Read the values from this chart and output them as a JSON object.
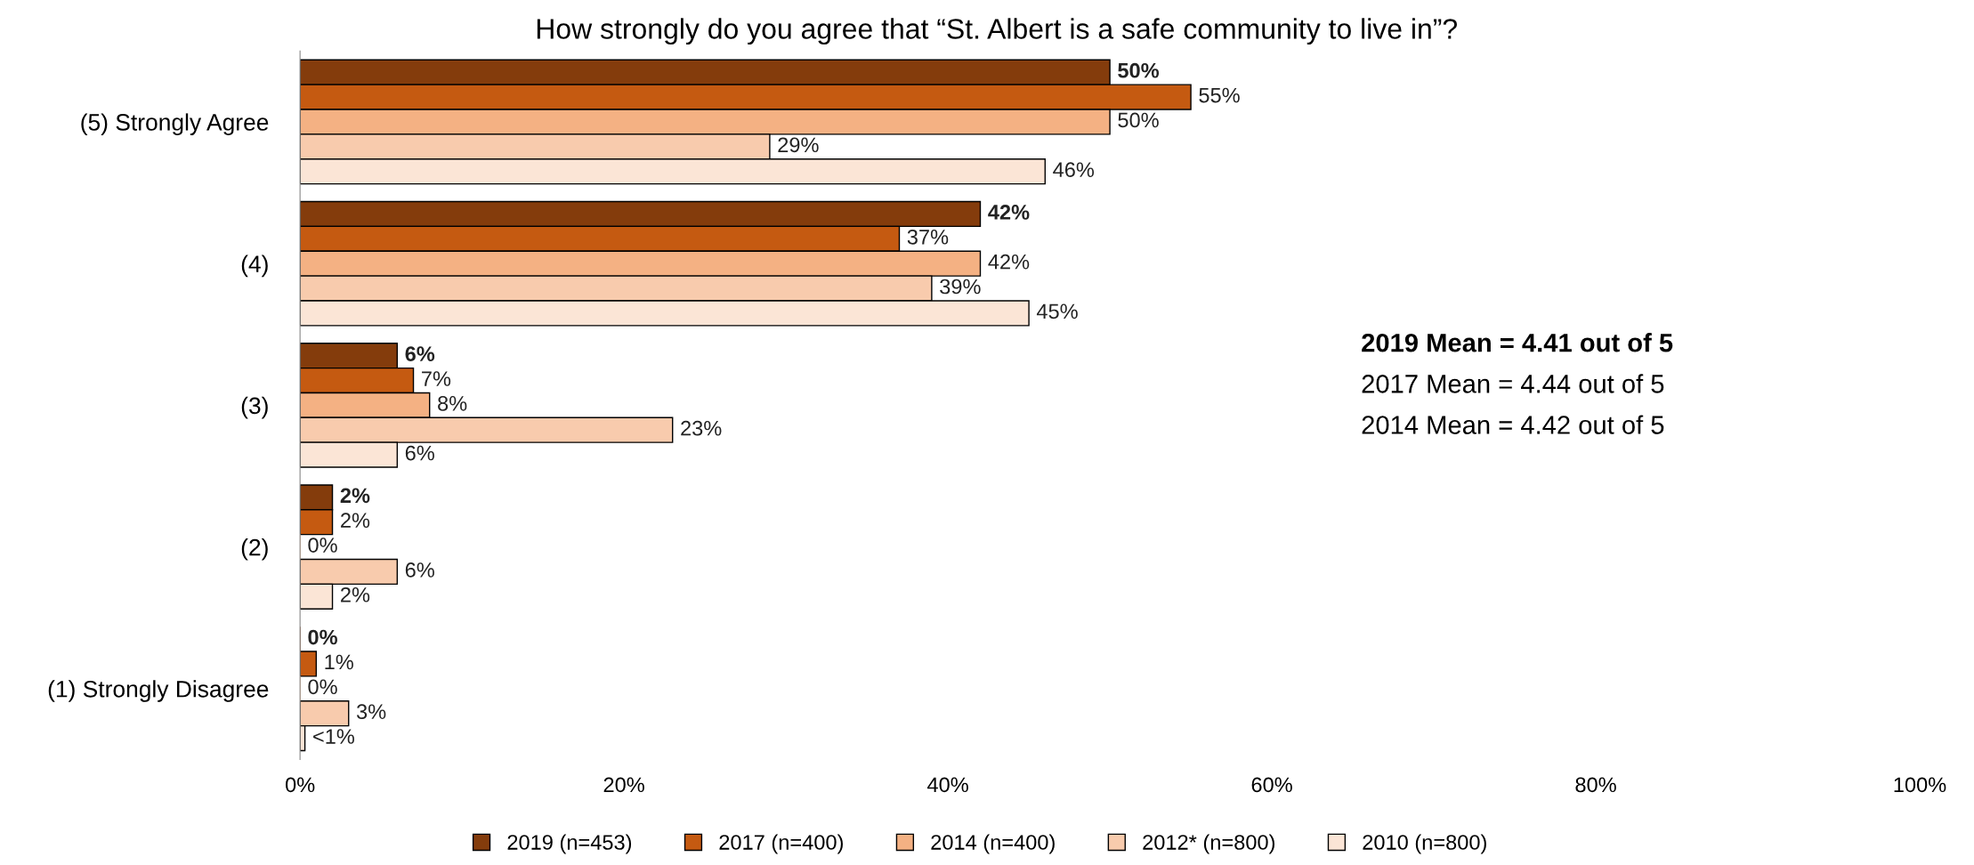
{
  "chart_data": {
    "type": "bar",
    "orientation": "horizontal",
    "title": "How strongly do you agree that “St. Albert is a safe community to live in”?",
    "categories": [
      "(5) Strongly Agree",
      "(4)",
      "(3)",
      "(2)",
      "(1) Strongly Disagree"
    ],
    "series": [
      {
        "name": "2019 (n=453)",
        "color": "#843c0c",
        "values": [
          50,
          42,
          6,
          2,
          0
        ],
        "value_labels": [
          "50%",
          "42%",
          "6%",
          "2%",
          "0%"
        ]
      },
      {
        "name": "2017 (n=400)",
        "color": "#c55a11",
        "values": [
          55,
          37,
          7,
          2,
          1
        ],
        "value_labels": [
          "55%",
          "37%",
          "7%",
          "2%",
          "1%"
        ]
      },
      {
        "name": "2014 (n=400)",
        "color": "#f4b183",
        "values": [
          50,
          42,
          8,
          0,
          0
        ],
        "value_labels": [
          "50%",
          "42%",
          "8%",
          "0%",
          "0%"
        ]
      },
      {
        "name": "2012* (n=800)",
        "color": "#f8cbad",
        "values": [
          29,
          39,
          23,
          6,
          3
        ],
        "value_labels": [
          "29%",
          "39%",
          "23%",
          "6%",
          "3%"
        ]
      },
      {
        "name": "2010 (n=800)",
        "color": "#fbe5d6",
        "values": [
          46,
          45,
          6,
          2,
          0.3
        ],
        "value_labels": [
          "46%",
          "45%",
          "6%",
          "2%",
          "<1%"
        ]
      }
    ],
    "xlim": [
      0,
      100
    ],
    "xticks": [
      {
        "value": 0,
        "label": "0%"
      },
      {
        "value": 20,
        "label": "20%"
      },
      {
        "value": 40,
        "label": "40%"
      },
      {
        "value": 60,
        "label": "60%"
      },
      {
        "value": 80,
        "label": "80%"
      },
      {
        "value": 100,
        "label": "100%"
      }
    ],
    "annotations": [
      "2019 Mean = 4.41 out of 5",
      "2017 Mean = 4.44 out of 5",
      "2014 Mean = 4.42 out of 5"
    ],
    "legend": "bottom",
    "grid": false
  }
}
